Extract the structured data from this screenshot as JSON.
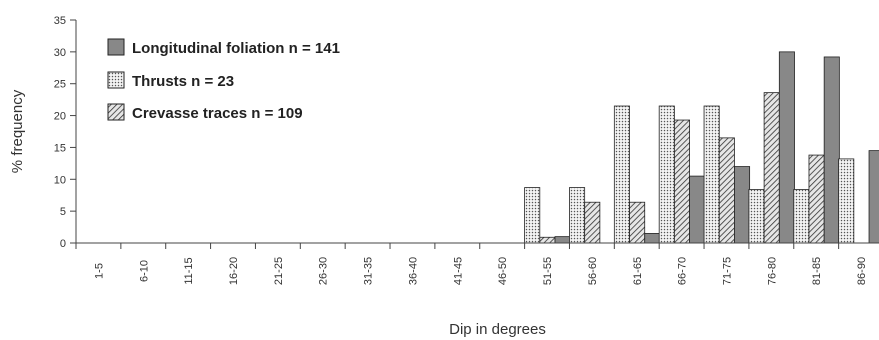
{
  "chart_data": {
    "type": "bar",
    "xlabel": "Dip in degrees",
    "ylabel": "% frequency",
    "ylim": [
      0,
      35
    ],
    "yticks": [
      0,
      5,
      10,
      15,
      20,
      25,
      30,
      35
    ],
    "categories": [
      "1-5",
      "6-10",
      "11-15",
      "16-20",
      "21-25",
      "26-30",
      "31-35",
      "36-40",
      "41-45",
      "46-50",
      "51-55",
      "56-60",
      "61-65",
      "66-70",
      "71-75",
      "76-80",
      "81-85",
      "86-90"
    ],
    "series": [
      {
        "name": "Longitudinal foliation n = 141",
        "color": "#888888",
        "pattern": "solid",
        "values": [
          0,
          0,
          0,
          0,
          0,
          0,
          0,
          0,
          0,
          0,
          1,
          0,
          1.5,
          10.5,
          12,
          30,
          29.2,
          14.5
        ]
      },
      {
        "name": "Thrusts n = 23",
        "color": "#e8e8e8",
        "pattern": "dots",
        "values": [
          0,
          0,
          0,
          0,
          0,
          0,
          0,
          0,
          0,
          0,
          8.7,
          8.7,
          21.5,
          21.5,
          21.5,
          8.4,
          8.4,
          13.2
        ]
      },
      {
        "name": "Crevasse traces n = 109",
        "color": "#bbbbbb",
        "pattern": "hatch",
        "values": [
          0,
          0,
          0,
          0,
          0,
          0,
          0,
          0,
          0,
          0,
          0.9,
          6.4,
          6.4,
          19.3,
          16.5,
          23.6,
          13.8,
          0
        ]
      }
    ],
    "legend": [
      {
        "series": 0,
        "label": "Longitudinal foliation  n = 141"
      },
      {
        "series": 1,
        "label": "Thrusts  n = 23"
      },
      {
        "series": 2,
        "label": "Crevasse traces  n = 109"
      }
    ],
    "legend_position": "top-left",
    "grid": false
  }
}
